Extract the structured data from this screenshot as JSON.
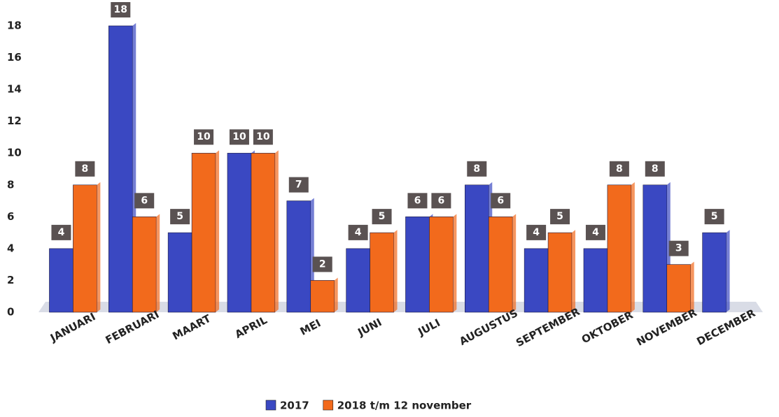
{
  "chart_data": {
    "type": "bar",
    "categories": [
      "JANUARI",
      "FEBRUARI",
      "MAART",
      "APRIL",
      "MEI",
      "JUNI",
      "JULI",
      "AUGUSTUS",
      "SEPTEMBER",
      "OKTOBER",
      "NOVEMBER",
      "DECEMBER"
    ],
    "series": [
      {
        "name": "2017",
        "color": "#3a48c2",
        "values": [
          4,
          18,
          5,
          10,
          7,
          4,
          6,
          8,
          4,
          4,
          8,
          5
        ]
      },
      {
        "name": "2018 t/m 12 november",
        "color": "#f26a1c",
        "values": [
          8,
          6,
          10,
          10,
          2,
          5,
          6,
          6,
          5,
          8,
          3,
          null
        ]
      }
    ],
    "ylim": [
      0,
      18
    ],
    "yticks": [
      0,
      2,
      4,
      6,
      8,
      10,
      12,
      14,
      16,
      18
    ],
    "legend": "bottom"
  }
}
